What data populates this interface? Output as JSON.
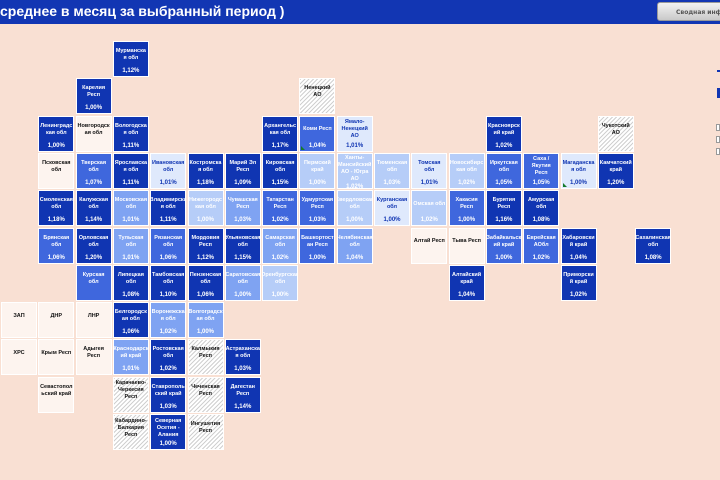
{
  "header": {
    "title": "среднее в месяц за выбранный период )",
    "summary_button": "Сводная инфо"
  },
  "colors": {
    "header_bg": "#1236b3",
    "background": "#f9e0d3",
    "level1": "#1035b2",
    "level2": "#3f67dd",
    "level3": "#7fa3f2",
    "level4": "#b6cdf8",
    "level5": "#dfe9fc"
  },
  "regions": [
    {
      "name": "Мурманска я обл",
      "value": "1,12%",
      "row": 0,
      "col": 3,
      "style": "c1",
      "flag": false
    },
    {
      "name": "Карелия Респ",
      "value": "1,00%",
      "row": 1,
      "col": 2,
      "style": "c1",
      "flag": false
    },
    {
      "name": "Ненецкий АО",
      "value": "",
      "row": 1,
      "col": 8,
      "style": "ch",
      "flag": false
    },
    {
      "name": "Ленинградс кая обл",
      "value": "1,00%",
      "row": 2,
      "col": 1,
      "style": "c1",
      "flag": false
    },
    {
      "name": "Новгородск ая обл",
      "value": "",
      "row": 2,
      "col": 2,
      "style": "cw",
      "flag": false
    },
    {
      "name": "Вологодска я обл",
      "value": "1,11%",
      "row": 2,
      "col": 3,
      "style": "c1",
      "flag": false
    },
    {
      "name": "Архангельс кая обл",
      "value": "1,17%",
      "row": 2,
      "col": 7,
      "style": "c1",
      "flag": false
    },
    {
      "name": "Коми Респ",
      "value": "1,04%",
      "row": 2,
      "col": 8,
      "style": "c2",
      "flag": true
    },
    {
      "name": "Ямало-Ненецкий АО",
      "value": "1,01%",
      "row": 2,
      "col": 9,
      "style": "c5",
      "flag": false
    },
    {
      "name": "Красноярск ий край",
      "value": "1,02%",
      "row": 2,
      "col": 13,
      "style": "c1",
      "flag": false
    },
    {
      "name": "Чукотский АО",
      "value": "",
      "row": 2,
      "col": 16,
      "style": "ch",
      "flag": false
    },
    {
      "name": "Псковская обл",
      "value": "",
      "row": 3,
      "col": 1,
      "style": "cw",
      "flag": false
    },
    {
      "name": "Тверская обл",
      "value": "1,07%",
      "row": 3,
      "col": 2,
      "style": "c2",
      "flag": false
    },
    {
      "name": "Ярославска я обл",
      "value": "1,11%",
      "row": 3,
      "col": 3,
      "style": "c1",
      "flag": false
    },
    {
      "name": "Ивановская обл",
      "value": "1,01%",
      "row": 3,
      "col": 4,
      "style": "c5",
      "flag": false
    },
    {
      "name": "Костромска я обл",
      "value": "1,18%",
      "row": 3,
      "col": 5,
      "style": "c1",
      "flag": false
    },
    {
      "name": "Марий Эл Респ",
      "value": "1,09%",
      "row": 3,
      "col": 6,
      "style": "c1",
      "flag": false
    },
    {
      "name": "Кировская обл",
      "value": "1,15%",
      "row": 3,
      "col": 7,
      "style": "c1",
      "flag": false
    },
    {
      "name": "Пермский край",
      "value": "1,00%",
      "row": 3,
      "col": 8,
      "style": "c4",
      "flag": false
    },
    {
      "name": "Ханты-Мансийский АО - Югра АО",
      "value": "1,02%",
      "row": 3,
      "col": 9,
      "style": "c4",
      "flag": false
    },
    {
      "name": "Тюменская обл",
      "value": "1,03%",
      "row": 3,
      "col": 10,
      "style": "c4",
      "flag": false
    },
    {
      "name": "Томская обл",
      "value": "1,01%",
      "row": 3,
      "col": 11,
      "style": "c5",
      "flag": false
    },
    {
      "name": "Новосибирс кая обл",
      "value": "1,02%",
      "row": 3,
      "col": 12,
      "style": "c4",
      "flag": false
    },
    {
      "name": "Иркутская обл",
      "value": "1,05%",
      "row": 3,
      "col": 13,
      "style": "c2",
      "flag": false
    },
    {
      "name": "Саха / Якутия Респ",
      "value": "1,05%",
      "row": 3,
      "col": 14,
      "style": "c2",
      "flag": false
    },
    {
      "name": "Магаданска я обл",
      "value": "1,00%",
      "row": 3,
      "col": 15,
      "style": "c5",
      "flag": true
    },
    {
      "name": "Камчатский край",
      "value": "1,20%",
      "row": 3,
      "col": 16,
      "style": "c1",
      "flag": false
    },
    {
      "name": "Смоленская обл",
      "value": "1,18%",
      "row": 4,
      "col": 1,
      "style": "c1",
      "flag": false
    },
    {
      "name": "Калужская обл",
      "value": "1,14%",
      "row": 4,
      "col": 2,
      "style": "c1",
      "flag": false
    },
    {
      "name": "Московская обл",
      "value": "1,01%",
      "row": 4,
      "col": 3,
      "style": "c3",
      "flag": false
    },
    {
      "name": "Владимирска я обл",
      "value": "1,11%",
      "row": 4,
      "col": 4,
      "style": "c1",
      "flag": false
    },
    {
      "name": "Нижегородс кая обл",
      "value": "1,00%",
      "row": 4,
      "col": 5,
      "style": "c4",
      "flag": false
    },
    {
      "name": "Чувашская Респ",
      "value": "1,03%",
      "row": 4,
      "col": 6,
      "style": "c3",
      "flag": false
    },
    {
      "name": "Татарстан Респ",
      "value": "1,02%",
      "row": 4,
      "col": 7,
      "style": "c2",
      "flag": false
    },
    {
      "name": "Удмуртская Респ",
      "value": "1,03%",
      "row": 4,
      "col": 8,
      "style": "c2",
      "flag": false
    },
    {
      "name": "Свердловская обл",
      "value": "1,00%",
      "row": 4,
      "col": 9,
      "style": "c4",
      "flag": false
    },
    {
      "name": "Курганская обл",
      "value": "1,00%",
      "row": 4,
      "col": 10,
      "style": "c5",
      "flag": false
    },
    {
      "name": "Омская обл",
      "value": "1,02%",
      "row": 4,
      "col": 11,
      "style": "c4",
      "flag": false
    },
    {
      "name": "Хакасия Респ",
      "value": "1,00%",
      "row": 4,
      "col": 12,
      "style": "c2",
      "flag": false
    },
    {
      "name": "Бурятия Респ",
      "value": "1,16%",
      "row": 4,
      "col": 13,
      "style": "c1",
      "flag": false
    },
    {
      "name": "Амурская обл",
      "value": "1,08%",
      "row": 4,
      "col": 14,
      "style": "c1",
      "flag": false
    },
    {
      "name": "Брянская обл",
      "value": "1,06%",
      "row": 5,
      "col": 1,
      "style": "c2",
      "flag": false
    },
    {
      "name": "Орловская обл",
      "value": "1,20%",
      "row": 5,
      "col": 2,
      "style": "c1",
      "flag": false
    },
    {
      "name": "Тульская обл",
      "value": "1,01%",
      "row": 5,
      "col": 3,
      "style": "c3",
      "flag": false
    },
    {
      "name": "Рязанская обл",
      "value": "1,06%",
      "row": 5,
      "col": 4,
      "style": "c2",
      "flag": false
    },
    {
      "name": "Мордовия Респ",
      "value": "1,12%",
      "row": 5,
      "col": 5,
      "style": "c1",
      "flag": false
    },
    {
      "name": "Ульяновская обл",
      "value": "1,15%",
      "row": 5,
      "col": 6,
      "style": "c1",
      "flag": false
    },
    {
      "name": "Самарская обл",
      "value": "1,02%",
      "row": 5,
      "col": 7,
      "style": "c3",
      "flag": false
    },
    {
      "name": "Башкортост ан Респ",
      "value": "1,00%",
      "row": 5,
      "col": 8,
      "style": "c2",
      "flag": false
    },
    {
      "name": "Челябинская обл",
      "value": "1,04%",
      "row": 5,
      "col": 9,
      "style": "c3",
      "flag": false
    },
    {
      "name": "Алтай Респ",
      "value": "",
      "row": 5,
      "col": 11,
      "style": "cw",
      "flag": false
    },
    {
      "name": "Тыва Респ",
      "value": "",
      "row": 5,
      "col": 12,
      "style": "cw",
      "flag": false
    },
    {
      "name": "Забайкальск ий край",
      "value": "1,00%",
      "row": 5,
      "col": 13,
      "style": "c2",
      "flag": false
    },
    {
      "name": "Еврейская АОбл",
      "value": "1,02%",
      "row": 5,
      "col": 14,
      "style": "c2",
      "flag": false
    },
    {
      "name": "Хабаровски й край",
      "value": "1,04%",
      "row": 5,
      "col": 15,
      "style": "c1",
      "flag": false
    },
    {
      "name": "Сахалинская обл",
      "value": "1,08%",
      "row": 5,
      "col": 17,
      "style": "c1",
      "flag": false
    },
    {
      "name": "Курская обл",
      "value": "",
      "row": 6,
      "col": 2,
      "style": "c2",
      "flag": false
    },
    {
      "name": "Липецкая обл",
      "value": "1,08%",
      "row": 6,
      "col": 3,
      "style": "c1",
      "flag": false
    },
    {
      "name": "Тамбовская обл",
      "value": "1,10%",
      "row": 6,
      "col": 4,
      "style": "c1",
      "flag": false
    },
    {
      "name": "Пензенская обл",
      "value": "1,06%",
      "row": 6,
      "col": 5,
      "style": "c1",
      "flag": false
    },
    {
      "name": "Саратовская обл",
      "value": "1,00%",
      "row": 6,
      "col": 6,
      "style": "c3",
      "flag": false
    },
    {
      "name": "Оренбургская обл",
      "value": "1,00%",
      "row": 6,
      "col": 7,
      "style": "c4",
      "flag": false
    },
    {
      "name": "Алтайский край",
      "value": "1,04%",
      "row": 6,
      "col": 12,
      "style": "c1",
      "flag": false
    },
    {
      "name": "Приморски й край",
      "value": "1,02%",
      "row": 6,
      "col": 15,
      "style": "c1",
      "flag": false
    },
    {
      "name": "ЗАП",
      "value": "",
      "row": 7,
      "col": 0,
      "style": "cw",
      "flag": false
    },
    {
      "name": "ДНР",
      "value": "",
      "row": 7,
      "col": 1,
      "style": "cw",
      "flag": false
    },
    {
      "name": "ЛНР",
      "value": "",
      "row": 7,
      "col": 2,
      "style": "cw",
      "flag": false
    },
    {
      "name": "Белгородск ая обл",
      "value": "1,06%",
      "row": 7,
      "col": 3,
      "style": "c1",
      "flag": false
    },
    {
      "name": "Воронежска я обл",
      "value": "1,02%",
      "row": 7,
      "col": 4,
      "style": "c3",
      "flag": false
    },
    {
      "name": "Волгоградск ая обл",
      "value": "1,00%",
      "row": 7,
      "col": 5,
      "style": "c3",
      "flag": false
    },
    {
      "name": "ХРС",
      "value": "",
      "row": 8,
      "col": 0,
      "style": "cw",
      "flag": false
    },
    {
      "name": "Крым Респ",
      "value": "",
      "row": 8,
      "col": 1,
      "style": "cw",
      "flag": false
    },
    {
      "name": "Адыгея Респ",
      "value": "",
      "row": 8,
      "col": 2,
      "style": "cw",
      "flag": false
    },
    {
      "name": "Краснодарск ий край",
      "value": "1,01%",
      "row": 8,
      "col": 3,
      "style": "c3",
      "flag": false
    },
    {
      "name": "Ростовская обл",
      "value": "1,02%",
      "row": 8,
      "col": 4,
      "style": "c1",
      "flag": false
    },
    {
      "name": "Калмыкия Респ",
      "value": "",
      "row": 8,
      "col": 5,
      "style": "ch",
      "flag": false
    },
    {
      "name": "Астраханска я обл",
      "value": "1,03%",
      "row": 8,
      "col": 6,
      "style": "c1",
      "flag": false
    },
    {
      "name": "Севастопол ьский край",
      "value": "",
      "row": 9,
      "col": 1,
      "style": "cw",
      "flag": false
    },
    {
      "name": "Карачаево-Черкесия Респ",
      "value": "",
      "row": 9,
      "col": 3,
      "style": "ch",
      "flag": false
    },
    {
      "name": "Ставрополь ский край",
      "value": "1,03%",
      "row": 9,
      "col": 4,
      "style": "c1",
      "flag": false
    },
    {
      "name": "Чеченская Респ",
      "value": "",
      "row": 9,
      "col": 5,
      "style": "ch",
      "flag": false
    },
    {
      "name": "Дагестан Респ",
      "value": "1,14%",
      "row": 9,
      "col": 6,
      "style": "c1",
      "flag": false
    },
    {
      "name": "Кабардино-Балкария Респ",
      "value": "",
      "row": 10,
      "col": 3,
      "style": "ch",
      "flag": false
    },
    {
      "name": "Северная Осетия - Алания",
      "value": "1,00%",
      "row": 10,
      "col": 4,
      "style": "c1",
      "flag": false
    },
    {
      "name": "Ингушетия Респ",
      "value": "",
      "row": 10,
      "col": 5,
      "style": "ch",
      "flag": false
    }
  ]
}
